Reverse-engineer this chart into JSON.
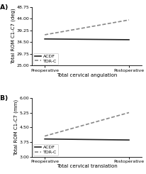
{
  "panel_A": {
    "label": "(A)",
    "ylabel": "Total ROM C1-C7 (deg)",
    "xlabel": "Total cervical angulation",
    "ylim": [
      25.0,
      48.75
    ],
    "yticks": [
      25.0,
      29.75,
      34.5,
      39.25,
      44.0,
      48.75
    ],
    "xtick_labels": [
      "Preoperative",
      "Postoperative"
    ],
    "acdf": [
      35.8,
      35.5
    ],
    "tdrc": [
      37.5,
      43.5
    ]
  },
  "panel_B": {
    "label": "(B)",
    "ylabel": "Total ROM C1-C7 (mm)",
    "xlabel": "Total cervical translation",
    "ylim": [
      3.0,
      6.0
    ],
    "yticks": [
      3.0,
      3.75,
      4.5,
      5.25,
      6.0
    ],
    "xtick_labels": [
      "Preoperative",
      "Postoperative"
    ],
    "acdf": [
      3.9,
      3.85
    ],
    "tdrc": [
      4.05,
      5.25
    ]
  },
  "legend_labels": [
    "ACDF",
    "TDR-C"
  ],
  "acdf_color": "#222222",
  "tdrc_color": "#888888",
  "linewidth": 1.2,
  "fontsize_label": 5.0,
  "fontsize_tick": 4.5,
  "fontsize_panel": 6.5,
  "fontsize_legend": 4.5,
  "background_color": "#ffffff"
}
